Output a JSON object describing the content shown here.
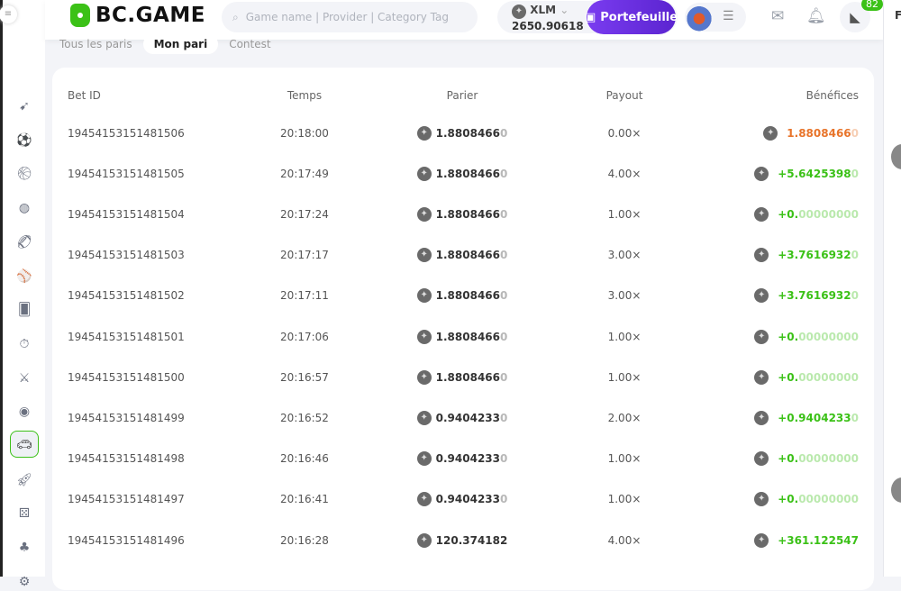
{
  "header": {
    "logo": "BC.GAME",
    "search_placeholder": "Game name | Provider | Category Tag",
    "currency": "XLM",
    "balance": "2650.90618",
    "wallet_label": "Portefeuille",
    "chat_badge": "82",
    "right_panel_letter": "F"
  },
  "tabs": [
    {
      "label": "Tous les paris"
    },
    {
      "label": "Mon pari",
      "active": true
    },
    {
      "label": "Contest"
    }
  ],
  "table": {
    "columns": [
      "Bet ID",
      "Temps",
      "Parier",
      "Payout",
      "Bénéfices"
    ],
    "rows": [
      {
        "id": "19454153151481506",
        "time": "20:18:00",
        "bet": "1.8808466",
        "bet_tail": "0",
        "payout": "0.00×",
        "profit": "1.8808466",
        "profit_tail": "0",
        "status": "loss"
      },
      {
        "id": "19454153151481505",
        "time": "20:17:49",
        "bet": "1.8808466",
        "bet_tail": "0",
        "payout": "4.00×",
        "profit": "+5.6425398",
        "profit_tail": "0",
        "status": "win"
      },
      {
        "id": "19454153151481504",
        "time": "20:17:24",
        "bet": "1.8808466",
        "bet_tail": "0",
        "payout": "1.00×",
        "profit": "+0.",
        "profit_tail": "00000000",
        "status": "win"
      },
      {
        "id": "19454153151481503",
        "time": "20:17:17",
        "bet": "1.8808466",
        "bet_tail": "0",
        "payout": "3.00×",
        "profit": "+3.7616932",
        "profit_tail": "0",
        "status": "win"
      },
      {
        "id": "19454153151481502",
        "time": "20:17:11",
        "bet": "1.8808466",
        "bet_tail": "0",
        "payout": "3.00×",
        "profit": "+3.7616932",
        "profit_tail": "0",
        "status": "win"
      },
      {
        "id": "19454153151481501",
        "time": "20:17:06",
        "bet": "1.8808466",
        "bet_tail": "0",
        "payout": "1.00×",
        "profit": "+0.",
        "profit_tail": "00000000",
        "status": "win"
      },
      {
        "id": "19454153151481500",
        "time": "20:16:57",
        "bet": "1.8808466",
        "bet_tail": "0",
        "payout": "1.00×",
        "profit": "+0.",
        "profit_tail": "00000000",
        "status": "win"
      },
      {
        "id": "19454153151481499",
        "time": "20:16:52",
        "bet": "0.9404233",
        "bet_tail": "0",
        "payout": "2.00×",
        "profit": "+0.9404233",
        "profit_tail": "0",
        "status": "win"
      },
      {
        "id": "19454153151481498",
        "time": "20:16:46",
        "bet": "0.9404233",
        "bet_tail": "0",
        "payout": "1.00×",
        "profit": "+0.",
        "profit_tail": "00000000",
        "status": "win"
      },
      {
        "id": "19454153151481497",
        "time": "20:16:41",
        "bet": "0.9404233",
        "bet_tail": "0",
        "payout": "1.00×",
        "profit": "+0.",
        "profit_tail": "00000000",
        "status": "win"
      },
      {
        "id": "19454153151481496",
        "time": "20:16:28",
        "bet": "120.374182",
        "bet_tail": "",
        "payout": "4.00×",
        "profit": "+361.122547",
        "profit_tail": "",
        "status": "win"
      }
    ]
  },
  "colors": {
    "brand_green": "#3bc117",
    "wallet_purple": "#6a2fe0",
    "loss_orange": "#e8742a"
  },
  "sidebar_icons": [
    "rocket-icon",
    "soccer-icon",
    "basketball-icon",
    "tennis-icon",
    "football-icon",
    "baseball-icon",
    "card-icon",
    "stopwatch-icon",
    "bat-icon",
    "esports-icon",
    "live-icon",
    "rocket2-icon",
    "dice-icon",
    "slots-icon",
    "more-icon"
  ]
}
